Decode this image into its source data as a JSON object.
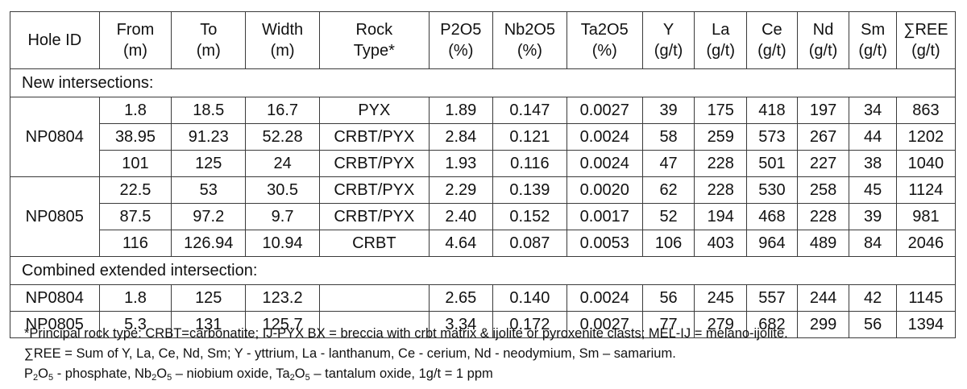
{
  "headers": [
    [
      "Hole ID",
      ""
    ],
    [
      "From",
      "(m)"
    ],
    [
      "To",
      "(m)"
    ],
    [
      "Width",
      "(m)"
    ],
    [
      "Rock",
      "Type*"
    ],
    [
      "P2O5",
      "(%)"
    ],
    [
      "Nb2O5",
      "(%)"
    ],
    [
      "Ta2O5",
      "(%)"
    ],
    [
      "Y",
      "(g/t)"
    ],
    [
      "La",
      "(g/t)"
    ],
    [
      "Ce",
      "(g/t)"
    ],
    [
      "Nd",
      "(g/t)"
    ],
    [
      "Sm",
      "(g/t)"
    ],
    [
      "∑REE",
      "(g/t)"
    ]
  ],
  "sections": {
    "new": "New intersections:",
    "combined": "Combined extended intersection:"
  },
  "holes": {
    "a": "NP0804",
    "b": "NP0805"
  },
  "new_rows": [
    [
      "1.8",
      "18.5",
      "16.7",
      "PYX",
      "1.89",
      "0.147",
      "0.0027",
      "39",
      "175",
      "418",
      "197",
      "34",
      "863"
    ],
    [
      "38.95",
      "91.23",
      "52.28",
      "CRBT/PYX",
      "2.84",
      "0.121",
      "0.0024",
      "58",
      "259",
      "573",
      "267",
      "44",
      "1202"
    ],
    [
      "101",
      "125",
      "24",
      "CRBT/PYX",
      "1.93",
      "0.116",
      "0.0024",
      "47",
      "228",
      "501",
      "227",
      "38",
      "1040"
    ],
    [
      "22.5",
      "53",
      "30.5",
      "CRBT/PYX",
      "2.29",
      "0.139",
      "0.0020",
      "62",
      "228",
      "530",
      "258",
      "45",
      "1124"
    ],
    [
      "87.5",
      "97.2",
      "9.7",
      "CRBT/PYX",
      "2.40",
      "0.152",
      "0.0017",
      "52",
      "194",
      "468",
      "228",
      "39",
      "981"
    ],
    [
      "116",
      "126.94",
      "10.94",
      "CRBT",
      "4.64",
      "0.087",
      "0.0053",
      "106",
      "403",
      "964",
      "489",
      "84",
      "2046"
    ]
  ],
  "combined_rows": [
    [
      "NP0804",
      "1.8",
      "125",
      "123.2",
      "",
      "2.65",
      "0.140",
      "0.0024",
      "56",
      "245",
      "557",
      "244",
      "42",
      "1145"
    ],
    [
      "NP0805",
      "5.3",
      "131",
      "125.7",
      "",
      "3.34",
      "0.172",
      "0.0027",
      "77",
      "279",
      "682",
      "299",
      "56",
      "1394"
    ]
  ],
  "footnotes": {
    "line1": "*Principal rock type: CRBT=carbonatite; IJ-PYX BX = breccia with crbt matrix & ijolite or pyroxenite clasts; MEL-IJ = melano-ijolite.",
    "line2": "∑REE = Sum of Y, La, Ce, Nd, Sm; Y - yttrium, La - lanthanum, Ce - cerium, Nd - neodymium, Sm – samarium.",
    "line3_parts": [
      "P",
      "2",
      "O",
      "5",
      " - phosphate, Nb",
      "2",
      "O",
      "5",
      " – niobium oxide, Ta",
      "2",
      "O",
      "5",
      " – tantalum oxide, 1g/t = 1 ppm"
    ]
  }
}
